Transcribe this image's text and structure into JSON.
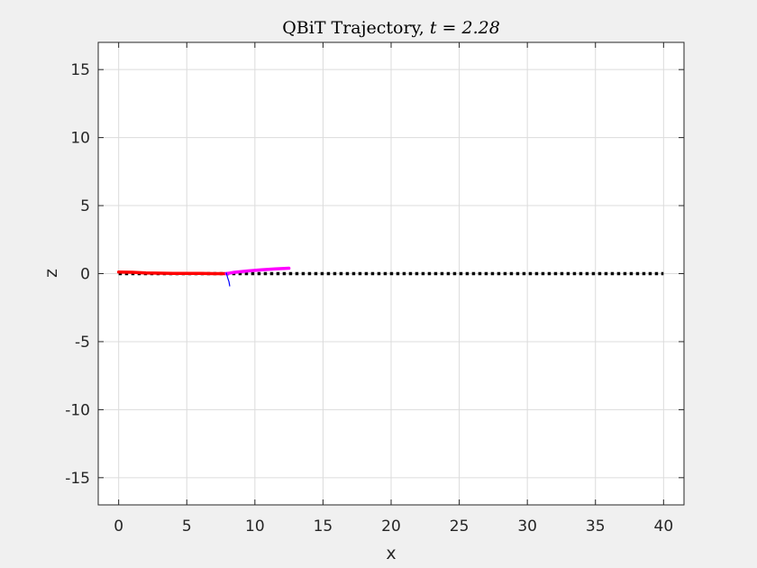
{
  "figure": {
    "background": "#f0f0f0"
  },
  "chart_data": {
    "type": "line",
    "title": "QBiT Trajectory, ",
    "title_math": "t = 2.28",
    "xlabel": "x",
    "ylabel": "z",
    "xlim": [
      -1.5,
      41.5
    ],
    "ylim": [
      -17,
      17
    ],
    "xticks": [
      0,
      5,
      10,
      15,
      20,
      25,
      30,
      35,
      40
    ],
    "yticks": [
      -15,
      -10,
      -5,
      0,
      5,
      10,
      15
    ],
    "xtick_labels": [
      "0",
      "5",
      "10",
      "15",
      "20",
      "25",
      "30",
      "35",
      "40"
    ],
    "ytick_labels": [
      "-15",
      "-10",
      "-5",
      "0",
      "5",
      "10",
      "15"
    ],
    "grid": true,
    "series": [
      {
        "style": "dotted",
        "color": "#000000",
        "x": [
          0,
          5,
          10,
          15,
          20,
          25,
          30,
          35,
          40
        ],
        "y": [
          0,
          0,
          0,
          0,
          0,
          0,
          0,
          0,
          0
        ]
      },
      {
        "style": "solid",
        "color": "#ff0000",
        "x": [
          0,
          1,
          2,
          3,
          4,
          5,
          6,
          7,
          7.8
        ],
        "y": [
          0.12,
          0.1,
          0.05,
          0.03,
          0.02,
          0.01,
          0.01,
          0,
          0
        ]
      },
      {
        "style": "solid",
        "color": "#ff00ff",
        "x": [
          7.9,
          8.5,
          9.5,
          10.5,
          11.5,
          12.5
        ],
        "y": [
          0,
          0.1,
          0.2,
          0.28,
          0.35,
          0.4
        ]
      },
      {
        "style": "solid",
        "color": "#0000ff",
        "x": [
          7.9,
          8.0,
          8.1,
          8.15
        ],
        "y": [
          0.05,
          -0.3,
          -0.6,
          -0.9
        ]
      }
    ]
  }
}
